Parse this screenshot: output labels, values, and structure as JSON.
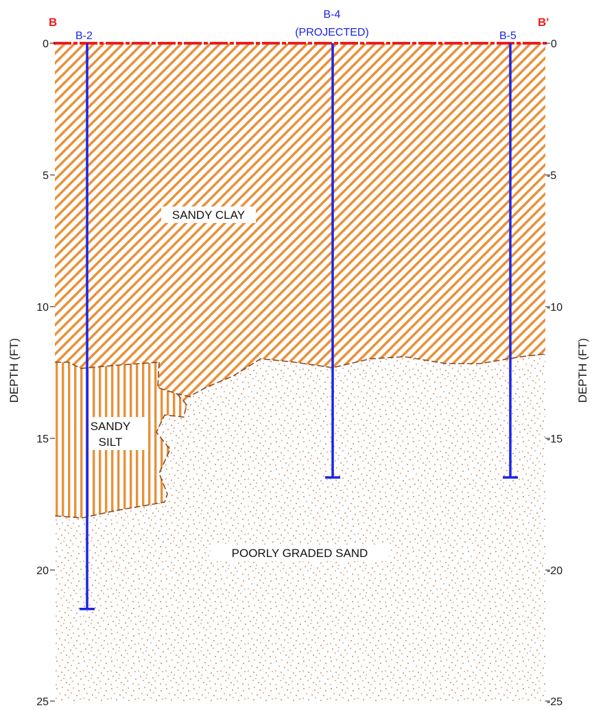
{
  "section": {
    "start_label": "B",
    "end_label": "B'",
    "left_axis_title": "DEPTH (FT)",
    "right_axis_title": "DEPTH (FT)",
    "left_ticks": [
      "0",
      "5",
      "10",
      "15",
      "20",
      "25"
    ],
    "right_ticks": [
      "0",
      "-5",
      "-10",
      "-15",
      "-20",
      "-25"
    ]
  },
  "borings": [
    {
      "name": "B-2",
      "depth_ft": 21.5
    },
    {
      "name": "B-4",
      "note": "(PROJECTED)",
      "depth_ft": 16.5
    },
    {
      "name": "B-5",
      "depth_ft": 16.5
    }
  ],
  "soil_units": {
    "sandy_clay": "SANDY CLAY",
    "sandy_silt_line1": "SANDY",
    "sandy_silt_line2": "SILT",
    "poorly_graded_sand": "POORLY GRADED SAND"
  },
  "colors": {
    "section_line": "#ee1c1c",
    "boring": "#1a24e6",
    "clay_hatch": "#e8913a",
    "sand_dots": "#c0692a",
    "contact": "#8a4a1c"
  }
}
